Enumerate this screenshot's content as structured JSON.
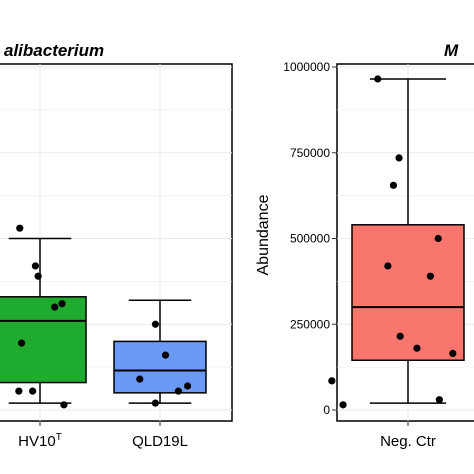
{
  "chart_data": [
    {
      "type": "box",
      "title": "alibacterium",
      "xlabel": "",
      "ylabel": "",
      "categories": [
        "HV10",
        "QLD19L"
      ],
      "category_superscripts": [
        "T",
        ""
      ],
      "colors": [
        "#1fab2e",
        "#6a9af5"
      ],
      "grid": true,
      "boxes": [
        {
          "name": "HV10",
          "min": 20000,
          "q1": 80000,
          "median": 260000,
          "q3": 330000,
          "max": 500000
        },
        {
          "name": "QLD19L",
          "min": 20000,
          "q1": 50000,
          "median": 115000,
          "q3": 200000,
          "max": 320000
        }
      ],
      "points": [
        [
          {
            "category": 0,
            "offset": -0.22,
            "y": 530000
          },
          {
            "category": 0,
            "offset": -0.05,
            "y": 420000
          },
          {
            "category": 0,
            "offset": -0.02,
            "y": 390000
          },
          {
            "category": 0,
            "offset": 0.24,
            "y": 310000
          },
          {
            "category": 0,
            "offset": 0.16,
            "y": 300000
          },
          {
            "category": 0,
            "offset": -0.2,
            "y": 195000
          },
          {
            "category": 0,
            "offset": -0.08,
            "y": 55000
          },
          {
            "category": 0,
            "offset": -0.23,
            "y": 55000
          },
          {
            "category": 0,
            "offset": 0.26,
            "y": 15000
          }
        ],
        [
          {
            "category": 1,
            "offset": -0.05,
            "y": 250000
          },
          {
            "category": 1,
            "offset": 0.06,
            "y": 160000
          },
          {
            "category": 1,
            "offset": -0.22,
            "y": 90000
          },
          {
            "category": 1,
            "offset": 0.2,
            "y": 55000
          },
          {
            "category": 1,
            "offset": 0.3,
            "y": 70000
          },
          {
            "category": 1,
            "offset": -0.05,
            "y": 20000
          }
        ]
      ]
    },
    {
      "type": "box",
      "title": "M",
      "xlabel": "",
      "ylabel": "Abundance",
      "categories": [
        "Neg. Ctr"
      ],
      "ylim": [
        0,
        1000000
      ],
      "yticks": [
        0,
        250000,
        500000,
        750000,
        1000000
      ],
      "ytick_labels": [
        "0",
        "250000",
        "500000",
        "750000",
        "1000000"
      ],
      "colors": [
        "#f8766d"
      ],
      "grid": true,
      "boxes": [
        {
          "name": "Neg. Ctr",
          "min": 20000,
          "q1": 145000,
          "median": 300000,
          "q3": 540000,
          "max": 965000
        }
      ],
      "points": [
        [
          {
            "category": 0,
            "offset": -0.27,
            "y": 965000
          },
          {
            "category": 0,
            "offset": -0.08,
            "y": 735000
          },
          {
            "category": 0,
            "offset": -0.13,
            "y": 655000
          },
          {
            "category": 0,
            "offset": 0.27,
            "y": 500000
          },
          {
            "category": 0,
            "offset": -0.18,
            "y": 420000
          },
          {
            "category": 0,
            "offset": 0.2,
            "y": 390000
          },
          {
            "category": 0,
            "offset": -0.07,
            "y": 215000
          },
          {
            "category": 0,
            "offset": 0.08,
            "y": 180000
          },
          {
            "category": 0,
            "offset": 0.4,
            "y": 165000
          },
          {
            "category": 0,
            "offset": -0.68,
            "y": 85000
          },
          {
            "category": 0,
            "offset": -0.58,
            "y": 15000
          },
          {
            "category": 0,
            "offset": 0.28,
            "y": 30000
          }
        ]
      ]
    }
  ]
}
